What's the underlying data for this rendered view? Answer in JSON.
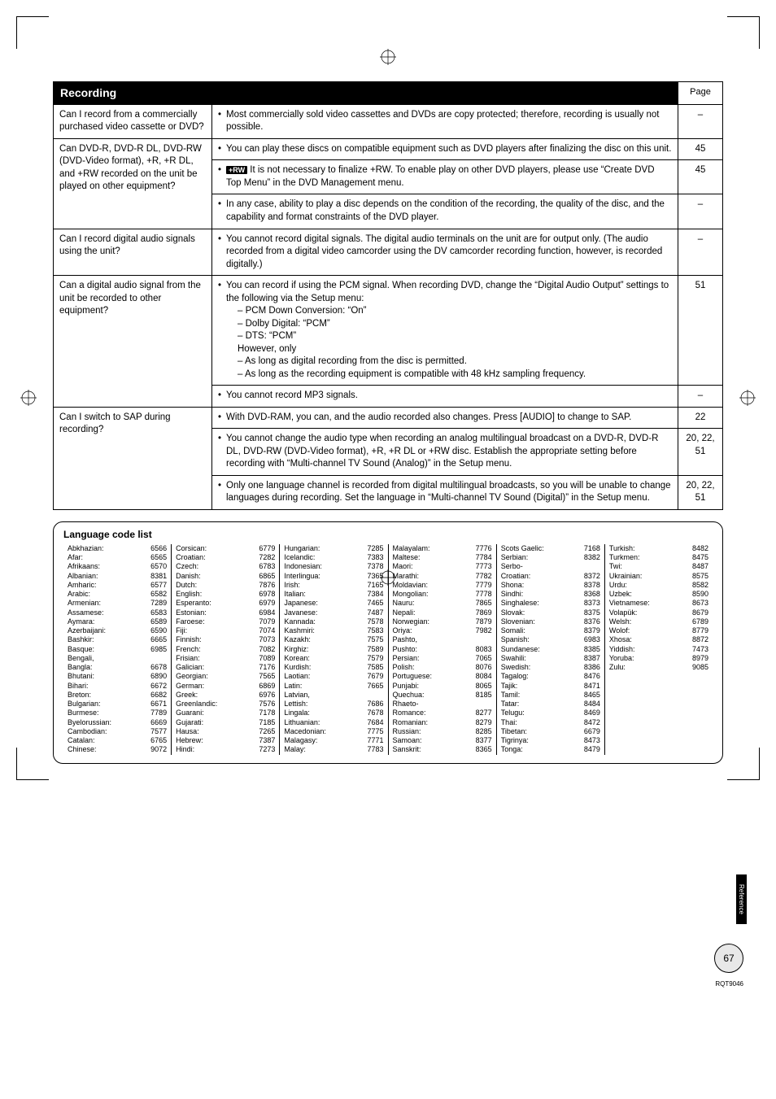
{
  "header": {
    "title": "Recording",
    "page_col": "Page"
  },
  "rows": [
    {
      "q": "Can I record from a commercially purchased video cassette or DVD?",
      "answers": [
        {
          "text": "Most commercially sold video cassettes and DVDs are copy protected; therefore, recording is usually not possible.",
          "page": "–"
        }
      ]
    },
    {
      "q": "Can DVD-R, DVD-R DL, DVD-RW (DVD-Video format), +R, +R DL, and +RW recorded on the unit be played on other equipment?",
      "answers": [
        {
          "text": "You can play these discs on compatible equipment such as DVD players after finalizing the disc on this unit.",
          "page": "45"
        },
        {
          "badge": "+RW",
          "text": "It is not necessary to finalize +RW. To enable play on other DVD players, please use “Create DVD Top Menu” in the DVD Management menu.",
          "page": "45"
        },
        {
          "text": "In any case, ability to play a disc depends on the condition of the recording, the quality of the disc, and the capability and format constraints of the DVD player.",
          "page": "–"
        }
      ]
    },
    {
      "q": "Can I record digital audio signals using the unit?",
      "answers": [
        {
          "text": "You cannot record digital signals. The digital audio terminals on the unit are for output only. (The audio recorded from a digital video camcorder using the DV camcorder recording function, however, is recorded digitally.)",
          "page": "–"
        }
      ]
    },
    {
      "q": "Can a digital audio signal from the unit be recorded to other equipment?",
      "answers": [
        {
          "text": "You can record if using the PCM signal. When recording DVD, change the “Digital Audio Output” settings to the following via the Setup menu:",
          "subs": [
            "– PCM Down Conversion: “On”",
            "– Dolby Digital: “PCM”",
            "– DTS: “PCM”",
            "However, only",
            "– As long as digital recording from the disc is permitted.",
            "– As long as the recording equipment is compatible with 48 kHz sampling frequency."
          ],
          "page": "51"
        },
        {
          "text": "You cannot record MP3 signals.",
          "page": "–"
        }
      ]
    },
    {
      "q": "Can I switch to SAP during recording?",
      "answers": [
        {
          "text": "With DVD-RAM, you can, and the audio recorded also changes. Press [AUDIO] to change to SAP.",
          "page": "22"
        },
        {
          "text": "You cannot change the audio type when recording an analog multilingual broadcast on a DVD-R, DVD-R DL, DVD-RW (DVD-Video format), +R, +R DL or +RW disc. Establish the appropriate setting before recording with “Multi-channel TV Sound (Analog)” in the Setup menu.",
          "page": "20, 22, 51"
        },
        {
          "text": "Only one language channel is recorded from digital multilingual broadcasts, so you will be unable to change languages during recording. Set the language in “Multi-channel TV Sound (Digital)” in the Setup menu.",
          "page": "20, 22, 51"
        }
      ]
    }
  ],
  "lang_title": "Language code list",
  "langs": [
    [
      [
        "Abkhazian:",
        "6566"
      ],
      [
        "Afar:",
        "6565"
      ],
      [
        "Afrikaans:",
        "6570"
      ],
      [
        "Albanian:",
        "8381"
      ],
      [
        "Amharic:",
        "6577"
      ],
      [
        "Arabic:",
        "6582"
      ],
      [
        "Armenian:",
        "7289"
      ],
      [
        "Assamese:",
        "6583"
      ],
      [
        "Aymara:",
        "6589"
      ],
      [
        "Azerbaijani:",
        "6590"
      ],
      [
        "Bashkir:",
        "6665"
      ],
      [
        "Basque:",
        "6985"
      ],
      [
        "Bengali,",
        ""
      ],
      [
        "Bangla:",
        "6678"
      ],
      [
        "Bhutani:",
        "6890"
      ],
      [
        "Bihari:",
        "6672"
      ],
      [
        "Breton:",
        "6682"
      ],
      [
        "Bulgarian:",
        "6671"
      ],
      [
        "Burmese:",
        "7789"
      ],
      [
        "Byelorussian:",
        "6669"
      ],
      [
        "Cambodian:",
        "7577"
      ],
      [
        "Catalan:",
        "6765"
      ],
      [
        "Chinese:",
        "9072"
      ]
    ],
    [
      [
        "Corsican:",
        "6779"
      ],
      [
        "Croatian:",
        "7282"
      ],
      [
        "Czech:",
        "6783"
      ],
      [
        "Danish:",
        "6865"
      ],
      [
        "Dutch:",
        "7876"
      ],
      [
        "English:",
        "6978"
      ],
      [
        "Esperanto:",
        "6979"
      ],
      [
        "Estonian:",
        "6984"
      ],
      [
        "Faroese:",
        "7079"
      ],
      [
        "Fiji:",
        "7074"
      ],
      [
        "Finnish:",
        "7073"
      ],
      [
        "French:",
        "7082"
      ],
      [
        "Frisian:",
        "7089"
      ],
      [
        "Galician:",
        "7176"
      ],
      [
        "Georgian:",
        "7565"
      ],
      [
        "German:",
        "6869"
      ],
      [
        "Greek:",
        "6976"
      ],
      [
        "Greenlandic:",
        "7576"
      ],
      [
        "Guarani:",
        "7178"
      ],
      [
        "Gujarati:",
        "7185"
      ],
      [
        "Hausa:",
        "7265"
      ],
      [
        "Hebrew:",
        "7387"
      ],
      [
        "Hindi:",
        "7273"
      ]
    ],
    [
      [
        "Hungarian:",
        "7285"
      ],
      [
        "Icelandic:",
        "7383"
      ],
      [
        "Indonesian:",
        "7378"
      ],
      [
        "Interlingua:",
        "7365"
      ],
      [
        "Irish:",
        "7165"
      ],
      [
        "Italian:",
        "7384"
      ],
      [
        "Japanese:",
        "7465"
      ],
      [
        "Javanese:",
        "7487"
      ],
      [
        "Kannada:",
        "7578"
      ],
      [
        "Kashmiri:",
        "7583"
      ],
      [
        "Kazakh:",
        "7575"
      ],
      [
        "Kirghiz:",
        "7589"
      ],
      [
        "Korean:",
        "7579"
      ],
      [
        "Kurdish:",
        "7585"
      ],
      [
        "Laotian:",
        "7679"
      ],
      [
        "Latin:",
        "7665"
      ],
      [
        "Latvian,",
        ""
      ],
      [
        "Lettish:",
        "7686"
      ],
      [
        "Lingala:",
        "7678"
      ],
      [
        "Lithuanian:",
        "7684"
      ],
      [
        "Macedonian:",
        "7775"
      ],
      [
        "Malagasy:",
        "7771"
      ],
      [
        "Malay:",
        "7783"
      ]
    ],
    [
      [
        "Malayalam:",
        "7776"
      ],
      [
        "Maltese:",
        "7784"
      ],
      [
        "Maori:",
        "7773"
      ],
      [
        "Marathi:",
        "7782"
      ],
      [
        "Moldavian:",
        "7779"
      ],
      [
        "Mongolian:",
        "7778"
      ],
      [
        "Nauru:",
        "7865"
      ],
      [
        "Nepali:",
        "7869"
      ],
      [
        "Norwegian:",
        "7879"
      ],
      [
        "Oriya:",
        "7982"
      ],
      [
        "Pashto,",
        ""
      ],
      [
        "Pushto:",
        "8083"
      ],
      [
        "Persian:",
        "7065"
      ],
      [
        "Polish:",
        "8076"
      ],
      [
        "Portuguese:",
        "8084"
      ],
      [
        "Punjabi:",
        "8065"
      ],
      [
        "Quechua:",
        "8185"
      ],
      [
        "Rhaeto-",
        ""
      ],
      [
        "Romance:",
        "8277"
      ],
      [
        "Romanian:",
        "8279"
      ],
      [
        "Russian:",
        "8285"
      ],
      [
        "Samoan:",
        "8377"
      ],
      [
        "Sanskrit:",
        "8365"
      ]
    ],
    [
      [
        "Scots Gaelic:",
        "7168"
      ],
      [
        "Serbian:",
        "8382"
      ],
      [
        "Serbo-",
        ""
      ],
      [
        "Croatian:",
        "8372"
      ],
      [
        "Shona:",
        "8378"
      ],
      [
        "Sindhi:",
        "8368"
      ],
      [
        "Singhalese:",
        "8373"
      ],
      [
        "Slovak:",
        "8375"
      ],
      [
        "Slovenian:",
        "8376"
      ],
      [
        "Somali:",
        "8379"
      ],
      [
        "Spanish:",
        "6983"
      ],
      [
        "Sundanese:",
        "8385"
      ],
      [
        "Swahili:",
        "8387"
      ],
      [
        "Swedish:",
        "8386"
      ],
      [
        "Tagalog:",
        "8476"
      ],
      [
        "Tajik:",
        "8471"
      ],
      [
        "Tamil:",
        "8465"
      ],
      [
        "Tatar:",
        "8484"
      ],
      [
        "Telugu:",
        "8469"
      ],
      [
        "Thai:",
        "8472"
      ],
      [
        "Tibetan:",
        "6679"
      ],
      [
        "Tigrinya:",
        "8473"
      ],
      [
        "Tonga:",
        "8479"
      ]
    ],
    [
      [
        "Turkish:",
        "8482"
      ],
      [
        "Turkmen:",
        "8475"
      ],
      [
        "Twi:",
        "8487"
      ],
      [
        "Ukrainian:",
        "8575"
      ],
      [
        "Urdu:",
        "8582"
      ],
      [
        "Uzbek:",
        "8590"
      ],
      [
        "Vietnamese:",
        "8673"
      ],
      [
        "Volapük:",
        "8679"
      ],
      [
        "Welsh:",
        "6789"
      ],
      [
        "Wolof:",
        "8779"
      ],
      [
        "Xhosa:",
        "8872"
      ],
      [
        "Yiddish:",
        "7473"
      ],
      [
        "Yoruba:",
        "8979"
      ],
      [
        "Zulu:",
        "9085"
      ]
    ]
  ],
  "side_tab": "Reference",
  "page_num": "67",
  "rqt": "RQT9046"
}
